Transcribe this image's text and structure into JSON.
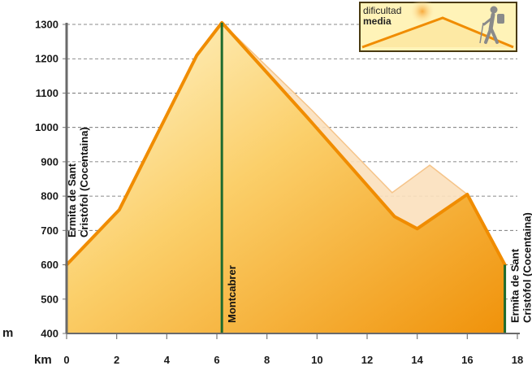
{
  "chart_data": {
    "type": "area",
    "ylabel": "m",
    "xlabel": "km",
    "xlim": [
      0,
      18
    ],
    "ylim": [
      400,
      1300
    ],
    "x_ticks": [
      0,
      2,
      4,
      6,
      8,
      10,
      12,
      14,
      16,
      18
    ],
    "y_ticks": [
      400,
      500,
      600,
      700,
      800,
      900,
      1000,
      1100,
      1200,
      1300
    ],
    "grid": "horizontal-dashed",
    "series": [
      {
        "role": "main-profile",
        "x": [
          0,
          2.1,
          5.2,
          6.2,
          9.6,
          13.1,
          14,
          16,
          17.5
        ],
        "y": [
          600,
          760,
          1210,
          1305,
          1030,
          740,
          705,
          805,
          600
        ]
      },
      {
        "role": "alternate-profile",
        "x": [
          6.2,
          9.8,
          13.0,
          14.5,
          16,
          17.5
        ],
        "y": [
          1305,
          1050,
          810,
          890,
          805,
          600
        ]
      }
    ],
    "waypoints": [
      {
        "x": 0,
        "lines": [
          "Ermita de Sant",
          "Cristòfol (Cocentaina)"
        ],
        "elev": 600
      },
      {
        "x": 6.2,
        "lines": [
          "Montcabrer"
        ],
        "elev": 1305
      },
      {
        "x": 17.5,
        "lines": [
          "Ermita de Sant",
          "Cristòfol (Cocentaina)"
        ],
        "elev": 600
      }
    ]
  },
  "difficulty": {
    "line1": "dificultad",
    "line2": "media"
  },
  "colors": {
    "line": "#f08c00",
    "fill_light": "#fff6c8",
    "fill_dark": "#f29a10",
    "marker": "#1e6b2e",
    "grid": "#666666",
    "alt_fill": "#fbe0bd"
  }
}
